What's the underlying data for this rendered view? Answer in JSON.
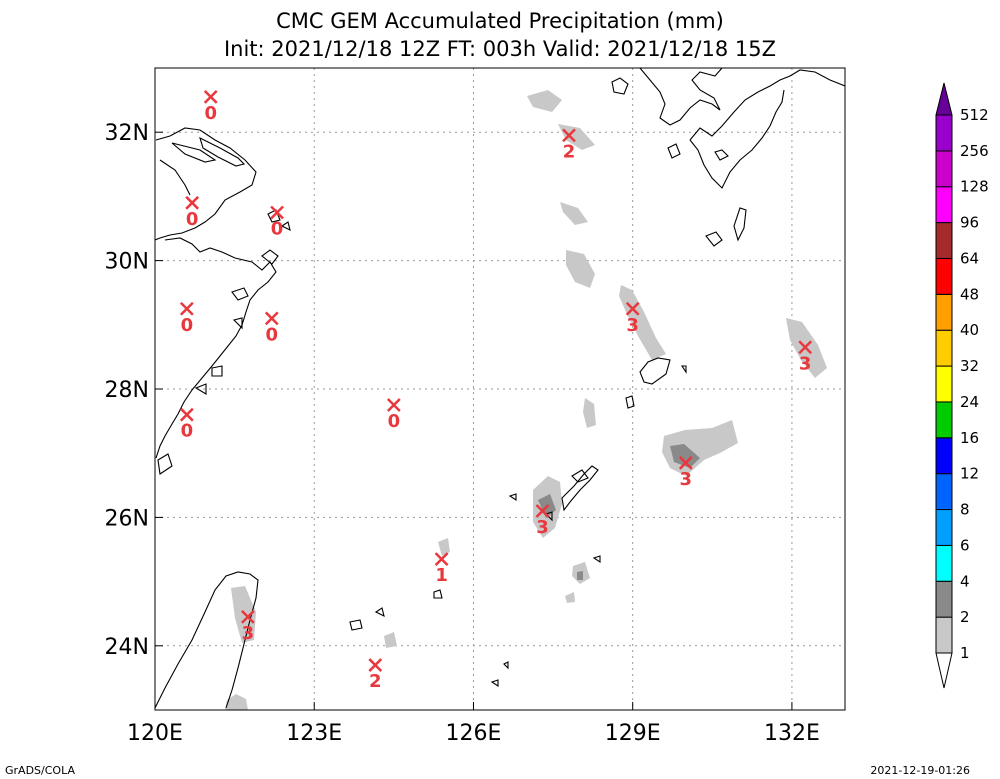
{
  "title_line1": "CMC GEM Accumulated Precipitation (mm)",
  "title_line2": "Init: 2021/12/18 12Z  FT: 003h  Valid: 2021/12/18 15Z",
  "footer_left": "GrADS/COLA",
  "footer_right": "2021-12-19-01:26",
  "map": {
    "lon_range": [
      120,
      133
    ],
    "lat_range": [
      23,
      33
    ],
    "lon_ticks": [
      120,
      123,
      126,
      129,
      132
    ],
    "lat_ticks": [
      24,
      26,
      28,
      30,
      32
    ],
    "lon_labels": [
      "120E",
      "123E",
      "126E",
      "129E",
      "132E"
    ],
    "lat_labels": [
      "24N",
      "26N",
      "28N",
      "30N",
      "32N"
    ]
  },
  "colorbar": {
    "levels": [
      "1",
      "2",
      "4",
      "6",
      "8",
      "12",
      "16",
      "24",
      "32",
      "40",
      "48",
      "64",
      "96",
      "128",
      "256",
      "512"
    ],
    "colors": [
      "#ffffff",
      "#c8c8c8",
      "#8a8a8a",
      "#00ffff",
      "#00a0ff",
      "#0064ff",
      "#0000ff",
      "#00cc00",
      "#ffff00",
      "#ffcc00",
      "#ffa000",
      "#ff0000",
      "#a52a2a",
      "#ff00ff",
      "#cc00cc",
      "#9900cc",
      "#660099"
    ]
  },
  "stations": [
    {
      "lon": 121.05,
      "lat": 32.55,
      "value": "0"
    },
    {
      "lon": 120.7,
      "lat": 30.9,
      "value": "0"
    },
    {
      "lon": 122.3,
      "lat": 30.75,
      "value": "0"
    },
    {
      "lon": 120.6,
      "lat": 29.25,
      "value": "0"
    },
    {
      "lon": 122.2,
      "lat": 29.1,
      "value": "0"
    },
    {
      "lon": 120.6,
      "lat": 27.6,
      "value": "0"
    },
    {
      "lon": 124.5,
      "lat": 27.75,
      "value": "0"
    },
    {
      "lon": 127.8,
      "lat": 31.95,
      "value": "2"
    },
    {
      "lon": 129.0,
      "lat": 29.25,
      "value": "3"
    },
    {
      "lon": 132.25,
      "lat": 28.65,
      "value": "3"
    },
    {
      "lon": 130.0,
      "lat": 26.85,
      "value": "3"
    },
    {
      "lon": 127.3,
      "lat": 26.1,
      "value": "3"
    },
    {
      "lon": 125.4,
      "lat": 25.35,
      "value": "1"
    },
    {
      "lon": 121.75,
      "lat": 24.45,
      "value": "3"
    },
    {
      "lon": 124.15,
      "lat": 23.7,
      "value": "2"
    }
  ]
}
